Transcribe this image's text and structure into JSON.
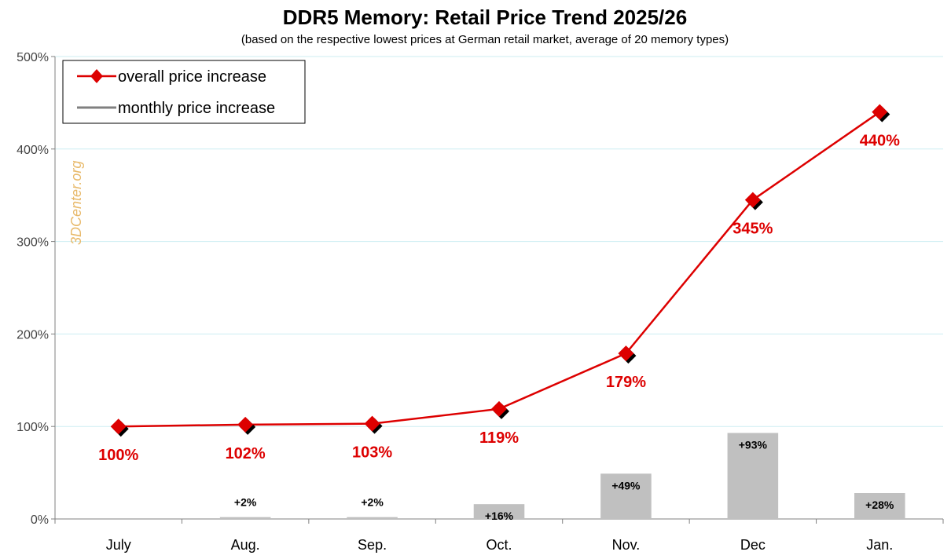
{
  "chart_data": {
    "type": "line",
    "title": "DDR5 Memory: Retail Price Trend 2025/26",
    "subtitle": "(based on the respective lowest prices at German retail market, average of 20 memory types)",
    "watermark": "3DCenter.org",
    "categories": [
      "July",
      "Aug.",
      "Sep.",
      "Oct.",
      "Nov.",
      "Dec",
      "Jan."
    ],
    "y_ticks": [
      0,
      100,
      200,
      300,
      400,
      500
    ],
    "y_tick_labels": [
      "0%",
      "100%",
      "200%",
      "300%",
      "400%",
      "500%"
    ],
    "ylim": [
      0,
      500
    ],
    "grid": true,
    "legend_position": "top-left",
    "series": [
      {
        "name": "overall price increase",
        "kind": "line",
        "color": "#dd0000",
        "values": [
          100,
          102,
          103,
          119,
          179,
          345,
          440
        ],
        "labels": [
          "100%",
          "102%",
          "103%",
          "119%",
          "179%",
          "345%",
          "440%"
        ]
      },
      {
        "name": "monthly price increase",
        "kind": "bar",
        "color": "#c0c0c0",
        "values": [
          null,
          2,
          2,
          16,
          49,
          93,
          28
        ],
        "labels": [
          "",
          "+2%",
          "+2%",
          "+16%",
          "+49%",
          "+93%",
          "+28%"
        ]
      }
    ],
    "colors": {
      "grid": "#cdeef2",
      "axis": "#808080",
      "watermark": "#e8b96a",
      "legend_monthly_line": "#808080"
    }
  }
}
